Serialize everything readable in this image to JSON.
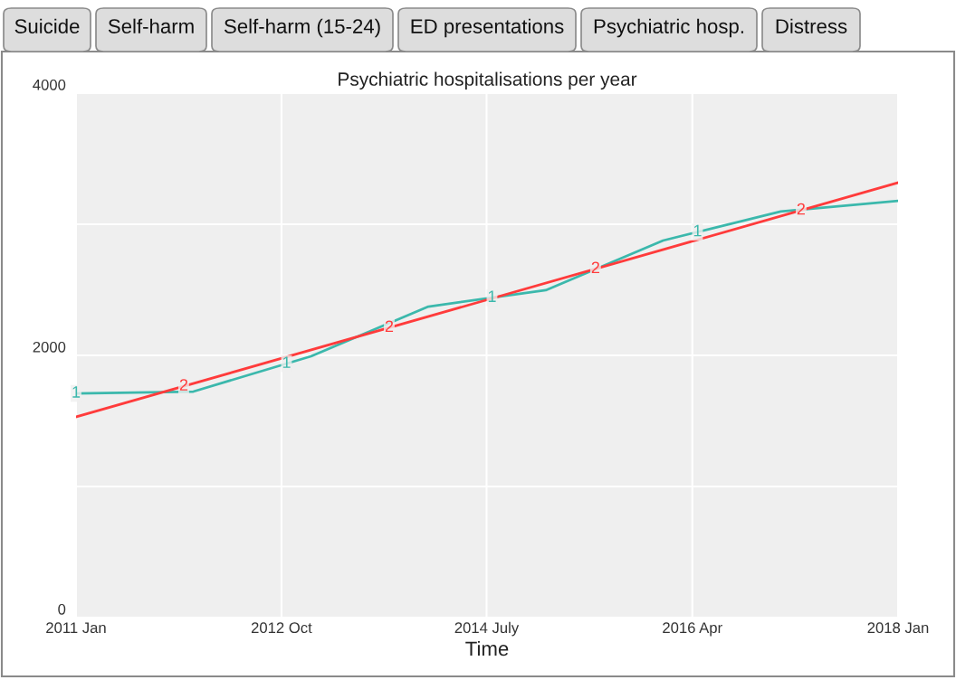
{
  "chart_data": {
    "type": "line",
    "title": "Psychiatric hospitalisations per year",
    "xlabel": "Time",
    "annotations": [
      "Suicide",
      "Self-harm",
      "Self-harm (15-24)",
      "ED presentations",
      "Psychiatric hosp.",
      "Distress"
    ],
    "series": [
      {
        "name": "1",
        "color": "#3bb8ac",
        "x": [
          "2011-01",
          "2012-01",
          "2013-01",
          "2014-01",
          "2015-01",
          "2016-01",
          "2017-01",
          "2018-01"
        ],
        "values": [
          1710,
          1724,
          1993,
          2372,
          2497,
          2876,
          3097,
          3179
        ]
      },
      {
        "name": "2",
        "color": "#ff3b3b",
        "x": [
          "2011-01",
          "2018-01"
        ],
        "values": [
          1531,
          3317
        ]
      }
    ],
    "xlim": [
      "2011-01",
      "2018-01"
    ],
    "xticks": [
      {
        "value": "2011-01",
        "label": "2011 Jan"
      },
      {
        "value": "2012-10",
        "label": "2012 Oct"
      },
      {
        "value": "2014-07",
        "label": "2014 July"
      },
      {
        "value": "2016-04",
        "label": "2016 Apr"
      },
      {
        "value": "2018-01",
        "label": "2018 Jan"
      }
    ],
    "ylim": [
      0,
      4000
    ],
    "yticks": [
      0,
      {
        "value": 1000,
        "label": null
      },
      2000,
      {
        "value": 3000,
        "label": null
      },
      4000
    ],
    "grid": true,
    "line_style": "solid",
    "marker": "none"
  }
}
